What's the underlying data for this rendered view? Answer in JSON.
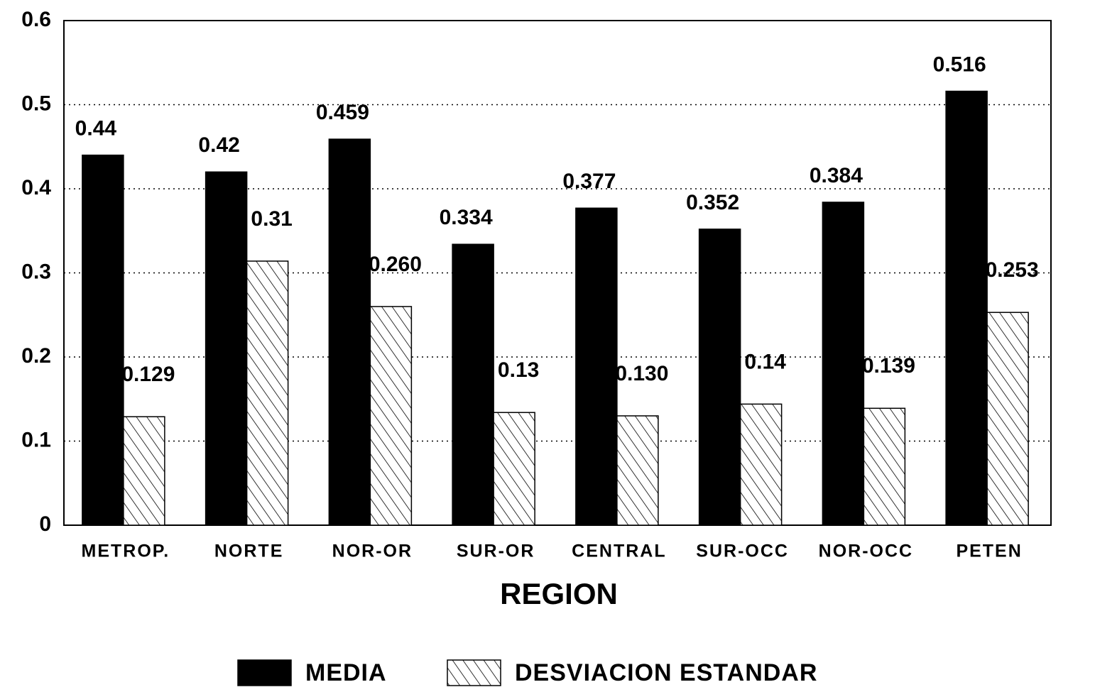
{
  "chart_data": {
    "type": "bar",
    "x_label": "REGION",
    "categories": [
      "METROP.",
      "NORTE",
      "NOR-OR",
      "SUR-OR",
      "CENTRAL",
      "SUR-OCC",
      "NOR-OCC",
      "PETEN"
    ],
    "series": [
      {
        "name": "MEDIA",
        "color": "#000000",
        "values": [
          0.44,
          0.42,
          0.459,
          0.334,
          0.377,
          0.352,
          0.384,
          0.516
        ],
        "value_labels": [
          "0.44",
          "0.42",
          "0.459",
          "0.334",
          "0.377",
          "0.352",
          "0.384",
          "0.516"
        ]
      },
      {
        "name": "DESVIACION ESTANDAR",
        "color": "#000000",
        "values": [
          0.129,
          0.314,
          0.26,
          0.134,
          0.13,
          0.144,
          0.139,
          0.253
        ],
        "value_labels": [
          "0.129",
          "0.31",
          "0.260",
          "0.13",
          "0.130",
          "0.14",
          "0.139",
          "0.253"
        ]
      }
    ],
    "ylim": [
      0,
      0.6
    ],
    "yticks": [
      0,
      0.1,
      0.2,
      0.3,
      0.4,
      0.5,
      0.6
    ],
    "grid": true,
    "legend": "bottom"
  }
}
